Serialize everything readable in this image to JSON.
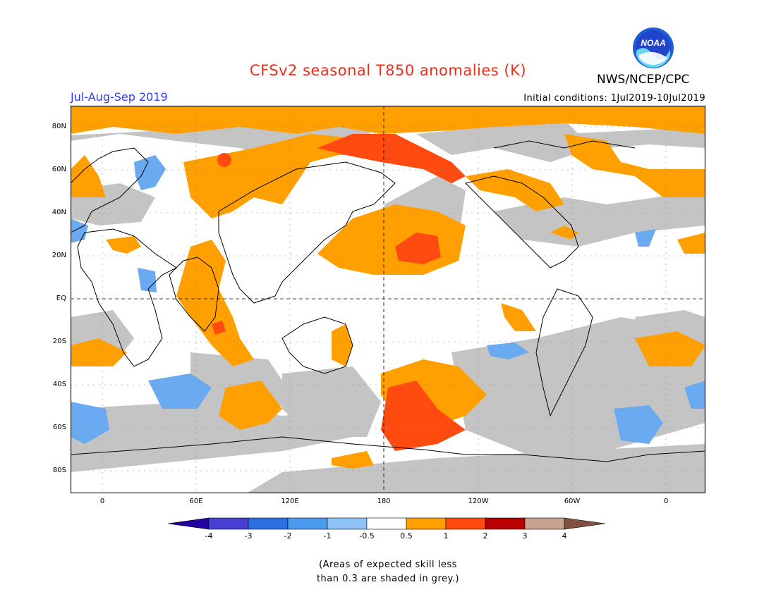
{
  "title": "CFSv2 seasonal T850 anomalies (K)",
  "season": "Jul-Aug-Sep 2019",
  "initial_conditions": "Initial conditions: 1Jul2019-10Jul2019",
  "agency": "NWS/NCEP/CPC",
  "logo_text": "NOAA",
  "lat_labels": [
    "80N",
    "60N",
    "40N",
    "20N",
    "EQ",
    "20S",
    "40S",
    "60S",
    "80S"
  ],
  "lon_labels": [
    "0",
    "60E",
    "120E",
    "180",
    "120W",
    "60W",
    "0"
  ],
  "colorbar": {
    "colors": [
      "#2400a0",
      "#4a3fd4",
      "#2b6fe0",
      "#4a9af0",
      "#8cc2f8",
      "#ffffff",
      "#ffa000",
      "#ff4a10",
      "#b80000",
      "#c8a090",
      "#805040"
    ],
    "labels": [
      "-4",
      "-3",
      "-2",
      "-1",
      "-0.5",
      "0.5",
      "1",
      "2",
      "3",
      "4"
    ]
  },
  "footnote": [
    "(Areas of expected skill less",
    "than 0.3 are shaded in grey.)"
  ],
  "colors": {
    "grey": "#c4c4c4",
    "orange": "#ffa000",
    "red": "#ff4a10",
    "blue": "#6aaaf0",
    "title_red": "#e8301c",
    "season_blue": "#2a3cff"
  }
}
